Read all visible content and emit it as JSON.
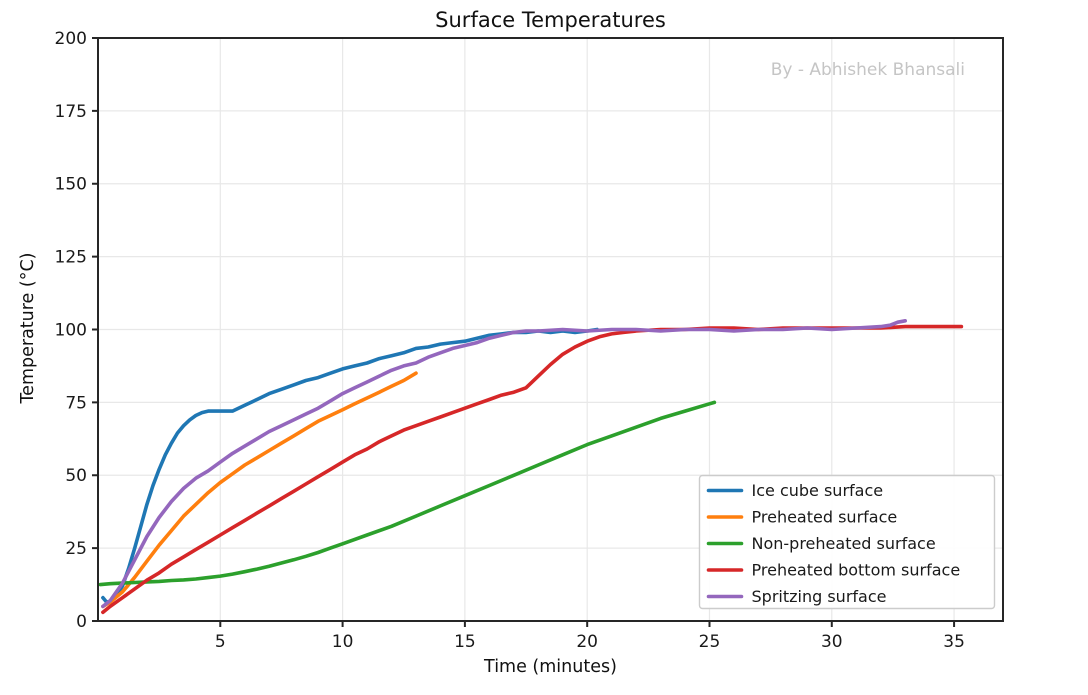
{
  "figure": {
    "title": "Surface Temperatures",
    "watermark": "By - Abhishek Bhansali"
  },
  "style": {
    "axis_color": "#262626",
    "grid_color": "#e8e8e8",
    "text_color": "#1a1a1a",
    "legend_border": "#cccccc",
    "background": "#ffffff"
  },
  "chart_data": {
    "type": "line",
    "title": "Surface Temperatures",
    "xlabel": "Time (minutes)",
    "ylabel": "Temperature (°C)",
    "xlim": [
      0,
      37
    ],
    "ylim": [
      0,
      200
    ],
    "xticks": [
      5,
      10,
      15,
      20,
      25,
      30,
      35
    ],
    "yticks": [
      0,
      25,
      50,
      75,
      100,
      125,
      150,
      175,
      200
    ],
    "grid": true,
    "legend_position": "lower right",
    "series": [
      {
        "name": "Ice cube surface",
        "color": "#1f77b4",
        "points": [
          [
            0.2,
            8
          ],
          [
            0.35,
            6.5
          ],
          [
            0.5,
            6.8
          ],
          [
            0.75,
            8.5
          ],
          [
            1,
            12
          ],
          [
            1.25,
            18
          ],
          [
            1.5,
            25
          ],
          [
            1.75,
            32.5
          ],
          [
            2,
            40
          ],
          [
            2.25,
            46.5
          ],
          [
            2.5,
            52
          ],
          [
            2.75,
            57
          ],
          [
            3,
            61
          ],
          [
            3.25,
            64.5
          ],
          [
            3.5,
            67
          ],
          [
            3.75,
            69
          ],
          [
            4,
            70.5
          ],
          [
            4.25,
            71.5
          ],
          [
            4.5,
            72
          ],
          [
            5,
            72
          ],
          [
            5.5,
            72
          ],
          [
            6,
            74
          ],
          [
            6.5,
            76
          ],
          [
            7,
            78
          ],
          [
            7.5,
            79.5
          ],
          [
            8,
            81
          ],
          [
            8.5,
            82.5
          ],
          [
            9,
            83.5
          ],
          [
            9.5,
            85
          ],
          [
            10,
            86.5
          ],
          [
            10.5,
            87.5
          ],
          [
            11,
            88.5
          ],
          [
            11.5,
            90
          ],
          [
            12,
            91
          ],
          [
            12.5,
            92
          ],
          [
            13,
            93.5
          ],
          [
            13.5,
            94
          ],
          [
            14,
            95
          ],
          [
            14.5,
            95.5
          ],
          [
            15,
            96
          ],
          [
            15.5,
            97
          ],
          [
            16,
            98
          ],
          [
            16.5,
            98.5
          ],
          [
            17,
            99
          ],
          [
            17.5,
            99
          ],
          [
            18,
            99.5
          ],
          [
            18.5,
            99
          ],
          [
            19,
            99.5
          ],
          [
            19.5,
            99
          ],
          [
            20,
            99.5
          ],
          [
            20.4,
            100
          ]
        ]
      },
      {
        "name": "Preheated surface",
        "color": "#ff7f0e",
        "points": [
          [
            0.2,
            5
          ],
          [
            0.5,
            6.5
          ],
          [
            1,
            10
          ],
          [
            1.5,
            15
          ],
          [
            2,
            20.5
          ],
          [
            2.5,
            26
          ],
          [
            3,
            31
          ],
          [
            3.5,
            36
          ],
          [
            4,
            40
          ],
          [
            4.5,
            44
          ],
          [
            5,
            47.5
          ],
          [
            5.5,
            50.5
          ],
          [
            6,
            53.5
          ],
          [
            6.5,
            56
          ],
          [
            7,
            58.5
          ],
          [
            7.5,
            61
          ],
          [
            8,
            63.5
          ],
          [
            8.5,
            66
          ],
          [
            9,
            68.5
          ],
          [
            9.5,
            70.5
          ],
          [
            10,
            72.5
          ],
          [
            10.5,
            74.5
          ],
          [
            11,
            76.5
          ],
          [
            11.5,
            78.5
          ],
          [
            12,
            80.5
          ],
          [
            12.5,
            82.5
          ],
          [
            13,
            85
          ]
        ]
      },
      {
        "name": "Non-preheated surface",
        "color": "#2ca02c",
        "points": [
          [
            0.1,
            12.5
          ],
          [
            0.5,
            12.8
          ],
          [
            1,
            13
          ],
          [
            1.5,
            13.2
          ],
          [
            2,
            13.4
          ],
          [
            2.5,
            13.6
          ],
          [
            3,
            13.9
          ],
          [
            3.5,
            14.1
          ],
          [
            4,
            14.4
          ],
          [
            4.5,
            14.9
          ],
          [
            5,
            15.4
          ],
          [
            5.5,
            16.1
          ],
          [
            6,
            16.9
          ],
          [
            6.5,
            17.8
          ],
          [
            7,
            18.8
          ],
          [
            7.5,
            19.9
          ],
          [
            8,
            21
          ],
          [
            8.5,
            22.2
          ],
          [
            9,
            23.5
          ],
          [
            9.5,
            25
          ],
          [
            10,
            26.5
          ],
          [
            11,
            29.5
          ],
          [
            12,
            32.5
          ],
          [
            13,
            36
          ],
          [
            14,
            39.5
          ],
          [
            15,
            43
          ],
          [
            16,
            46.5
          ],
          [
            17,
            50
          ],
          [
            18,
            53.5
          ],
          [
            19,
            57
          ],
          [
            20,
            60.5
          ],
          [
            21,
            63.5
          ],
          [
            22,
            66.5
          ],
          [
            23,
            69.5
          ],
          [
            24,
            72
          ],
          [
            25,
            74.5
          ],
          [
            25.2,
            75
          ]
        ]
      },
      {
        "name": "Preheated bottom surface",
        "color": "#d62728",
        "points": [
          [
            0.2,
            3
          ],
          [
            0.5,
            5
          ],
          [
            1,
            8
          ],
          [
            1.5,
            11
          ],
          [
            2,
            14
          ],
          [
            2.5,
            16.5
          ],
          [
            3,
            19.5
          ],
          [
            3.5,
            22
          ],
          [
            4,
            24.5
          ],
          [
            4.5,
            27
          ],
          [
            5,
            29.5
          ],
          [
            5.5,
            32
          ],
          [
            6,
            34.5
          ],
          [
            6.5,
            37
          ],
          [
            7,
            39.5
          ],
          [
            7.5,
            42
          ],
          [
            8,
            44.5
          ],
          [
            8.5,
            47
          ],
          [
            9,
            49.5
          ],
          [
            9.5,
            52
          ],
          [
            10,
            54.5
          ],
          [
            10.5,
            57
          ],
          [
            11,
            59
          ],
          [
            11.5,
            61.5
          ],
          [
            12,
            63.5
          ],
          [
            12.5,
            65.5
          ],
          [
            13,
            67
          ],
          [
            13.5,
            68.5
          ],
          [
            14,
            70
          ],
          [
            14.5,
            71.5
          ],
          [
            15,
            73
          ],
          [
            15.5,
            74.5
          ],
          [
            16,
            76
          ],
          [
            16.5,
            77.5
          ],
          [
            17,
            78.5
          ],
          [
            17.5,
            80
          ],
          [
            18,
            84
          ],
          [
            18.5,
            88
          ],
          [
            19,
            91.5
          ],
          [
            19.5,
            94
          ],
          [
            20,
            96
          ],
          [
            20.5,
            97.5
          ],
          [
            21,
            98.5
          ],
          [
            21.5,
            99
          ],
          [
            22,
            99.5
          ],
          [
            23,
            100
          ],
          [
            24,
            100
          ],
          [
            25,
            100.5
          ],
          [
            26,
            100.5
          ],
          [
            27,
            100
          ],
          [
            28,
            100.5
          ],
          [
            29,
            100.5
          ],
          [
            30,
            100.5
          ],
          [
            31,
            100.5
          ],
          [
            32,
            100.5
          ],
          [
            33,
            101
          ],
          [
            34,
            101
          ],
          [
            35,
            101
          ],
          [
            35.3,
            101
          ]
        ]
      },
      {
        "name": "Spritzing surface",
        "color": "#9467bd",
        "points": [
          [
            0.2,
            5
          ],
          [
            0.5,
            7
          ],
          [
            1,
            13
          ],
          [
            1.5,
            21
          ],
          [
            2,
            29
          ],
          [
            2.5,
            35.5
          ],
          [
            3,
            41
          ],
          [
            3.5,
            45.5
          ],
          [
            4,
            49
          ],
          [
            4.5,
            51.5
          ],
          [
            5,
            54.5
          ],
          [
            5.5,
            57.5
          ],
          [
            6,
            60
          ],
          [
            6.5,
            62.5
          ],
          [
            7,
            65
          ],
          [
            7.5,
            67
          ],
          [
            8,
            69
          ],
          [
            8.5,
            71
          ],
          [
            9,
            73
          ],
          [
            9.5,
            75.5
          ],
          [
            10,
            78
          ],
          [
            10.5,
            80
          ],
          [
            11,
            82
          ],
          [
            11.5,
            84
          ],
          [
            12,
            86
          ],
          [
            12.5,
            87.5
          ],
          [
            13,
            88.5
          ],
          [
            13.5,
            90.5
          ],
          [
            14,
            92
          ],
          [
            14.5,
            93.5
          ],
          [
            15,
            94.5
          ],
          [
            15.5,
            95.5
          ],
          [
            16,
            97
          ],
          [
            16.5,
            98
          ],
          [
            17,
            99
          ],
          [
            17.5,
            99.5
          ],
          [
            18,
            99.5
          ],
          [
            19,
            100
          ],
          [
            20,
            99.5
          ],
          [
            21,
            100
          ],
          [
            22,
            100
          ],
          [
            23,
            99.5
          ],
          [
            24,
            100
          ],
          [
            25,
            100
          ],
          [
            26,
            99.5
          ],
          [
            27,
            100
          ],
          [
            28,
            100
          ],
          [
            29,
            100.5
          ],
          [
            30,
            100
          ],
          [
            31,
            100.5
          ],
          [
            32,
            101
          ],
          [
            32.4,
            101.5
          ],
          [
            32.7,
            102.5
          ],
          [
            33,
            103
          ]
        ]
      }
    ]
  }
}
